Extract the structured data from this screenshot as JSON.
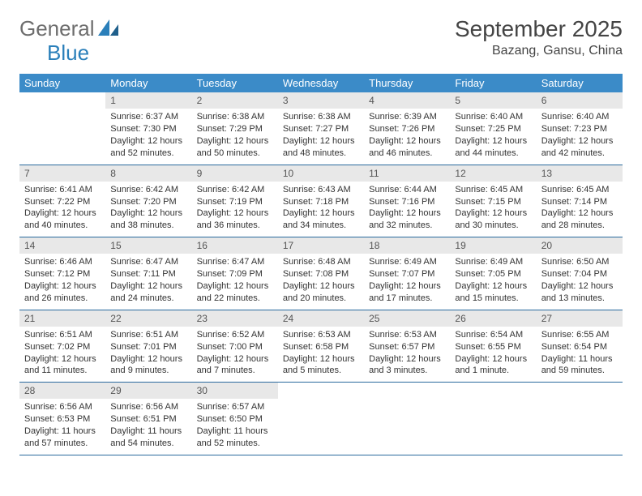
{
  "brand": {
    "part1": "General",
    "part2": "Blue"
  },
  "title": "September 2025",
  "location": "Bazang, Gansu, China",
  "colors": {
    "header_bg": "#3b8bc8",
    "header_text": "#ffffff",
    "daynum_bg": "#e8e8e8",
    "daynum_text": "#555555",
    "cell_border": "#2a6a9e",
    "brand_gray": "#6d6d6d",
    "brand_blue": "#2a7fba",
    "body_text": "#333333",
    "page_bg": "#ffffff"
  },
  "typography": {
    "title_fontsize": 28,
    "location_fontsize": 16,
    "dayheader_fontsize": 13,
    "cell_fontsize": 11,
    "logo_fontsize": 26
  },
  "day_headers": [
    "Sunday",
    "Monday",
    "Tuesday",
    "Wednesday",
    "Thursday",
    "Friday",
    "Saturday"
  ],
  "weeks": [
    [
      {
        "n": "",
        "sunrise": "",
        "sunset": "",
        "daylight": ""
      },
      {
        "n": "1",
        "sunrise": "Sunrise: 6:37 AM",
        "sunset": "Sunset: 7:30 PM",
        "daylight": "Daylight: 12 hours and 52 minutes."
      },
      {
        "n": "2",
        "sunrise": "Sunrise: 6:38 AM",
        "sunset": "Sunset: 7:29 PM",
        "daylight": "Daylight: 12 hours and 50 minutes."
      },
      {
        "n": "3",
        "sunrise": "Sunrise: 6:38 AM",
        "sunset": "Sunset: 7:27 PM",
        "daylight": "Daylight: 12 hours and 48 minutes."
      },
      {
        "n": "4",
        "sunrise": "Sunrise: 6:39 AM",
        "sunset": "Sunset: 7:26 PM",
        "daylight": "Daylight: 12 hours and 46 minutes."
      },
      {
        "n": "5",
        "sunrise": "Sunrise: 6:40 AM",
        "sunset": "Sunset: 7:25 PM",
        "daylight": "Daylight: 12 hours and 44 minutes."
      },
      {
        "n": "6",
        "sunrise": "Sunrise: 6:40 AM",
        "sunset": "Sunset: 7:23 PM",
        "daylight": "Daylight: 12 hours and 42 minutes."
      }
    ],
    [
      {
        "n": "7",
        "sunrise": "Sunrise: 6:41 AM",
        "sunset": "Sunset: 7:22 PM",
        "daylight": "Daylight: 12 hours and 40 minutes."
      },
      {
        "n": "8",
        "sunrise": "Sunrise: 6:42 AM",
        "sunset": "Sunset: 7:20 PM",
        "daylight": "Daylight: 12 hours and 38 minutes."
      },
      {
        "n": "9",
        "sunrise": "Sunrise: 6:42 AM",
        "sunset": "Sunset: 7:19 PM",
        "daylight": "Daylight: 12 hours and 36 minutes."
      },
      {
        "n": "10",
        "sunrise": "Sunrise: 6:43 AM",
        "sunset": "Sunset: 7:18 PM",
        "daylight": "Daylight: 12 hours and 34 minutes."
      },
      {
        "n": "11",
        "sunrise": "Sunrise: 6:44 AM",
        "sunset": "Sunset: 7:16 PM",
        "daylight": "Daylight: 12 hours and 32 minutes."
      },
      {
        "n": "12",
        "sunrise": "Sunrise: 6:45 AM",
        "sunset": "Sunset: 7:15 PM",
        "daylight": "Daylight: 12 hours and 30 minutes."
      },
      {
        "n": "13",
        "sunrise": "Sunrise: 6:45 AM",
        "sunset": "Sunset: 7:14 PM",
        "daylight": "Daylight: 12 hours and 28 minutes."
      }
    ],
    [
      {
        "n": "14",
        "sunrise": "Sunrise: 6:46 AM",
        "sunset": "Sunset: 7:12 PM",
        "daylight": "Daylight: 12 hours and 26 minutes."
      },
      {
        "n": "15",
        "sunrise": "Sunrise: 6:47 AM",
        "sunset": "Sunset: 7:11 PM",
        "daylight": "Daylight: 12 hours and 24 minutes."
      },
      {
        "n": "16",
        "sunrise": "Sunrise: 6:47 AM",
        "sunset": "Sunset: 7:09 PM",
        "daylight": "Daylight: 12 hours and 22 minutes."
      },
      {
        "n": "17",
        "sunrise": "Sunrise: 6:48 AM",
        "sunset": "Sunset: 7:08 PM",
        "daylight": "Daylight: 12 hours and 20 minutes."
      },
      {
        "n": "18",
        "sunrise": "Sunrise: 6:49 AM",
        "sunset": "Sunset: 7:07 PM",
        "daylight": "Daylight: 12 hours and 17 minutes."
      },
      {
        "n": "19",
        "sunrise": "Sunrise: 6:49 AM",
        "sunset": "Sunset: 7:05 PM",
        "daylight": "Daylight: 12 hours and 15 minutes."
      },
      {
        "n": "20",
        "sunrise": "Sunrise: 6:50 AM",
        "sunset": "Sunset: 7:04 PM",
        "daylight": "Daylight: 12 hours and 13 minutes."
      }
    ],
    [
      {
        "n": "21",
        "sunrise": "Sunrise: 6:51 AM",
        "sunset": "Sunset: 7:02 PM",
        "daylight": "Daylight: 12 hours and 11 minutes."
      },
      {
        "n": "22",
        "sunrise": "Sunrise: 6:51 AM",
        "sunset": "Sunset: 7:01 PM",
        "daylight": "Daylight: 12 hours and 9 minutes."
      },
      {
        "n": "23",
        "sunrise": "Sunrise: 6:52 AM",
        "sunset": "Sunset: 7:00 PM",
        "daylight": "Daylight: 12 hours and 7 minutes."
      },
      {
        "n": "24",
        "sunrise": "Sunrise: 6:53 AM",
        "sunset": "Sunset: 6:58 PM",
        "daylight": "Daylight: 12 hours and 5 minutes."
      },
      {
        "n": "25",
        "sunrise": "Sunrise: 6:53 AM",
        "sunset": "Sunset: 6:57 PM",
        "daylight": "Daylight: 12 hours and 3 minutes."
      },
      {
        "n": "26",
        "sunrise": "Sunrise: 6:54 AM",
        "sunset": "Sunset: 6:55 PM",
        "daylight": "Daylight: 12 hours and 1 minute."
      },
      {
        "n": "27",
        "sunrise": "Sunrise: 6:55 AM",
        "sunset": "Sunset: 6:54 PM",
        "daylight": "Daylight: 11 hours and 59 minutes."
      }
    ],
    [
      {
        "n": "28",
        "sunrise": "Sunrise: 6:56 AM",
        "sunset": "Sunset: 6:53 PM",
        "daylight": "Daylight: 11 hours and 57 minutes."
      },
      {
        "n": "29",
        "sunrise": "Sunrise: 6:56 AM",
        "sunset": "Sunset: 6:51 PM",
        "daylight": "Daylight: 11 hours and 54 minutes."
      },
      {
        "n": "30",
        "sunrise": "Sunrise: 6:57 AM",
        "sunset": "Sunset: 6:50 PM",
        "daylight": "Daylight: 11 hours and 52 minutes."
      },
      {
        "n": "",
        "sunrise": "",
        "sunset": "",
        "daylight": ""
      },
      {
        "n": "",
        "sunrise": "",
        "sunset": "",
        "daylight": ""
      },
      {
        "n": "",
        "sunrise": "",
        "sunset": "",
        "daylight": ""
      },
      {
        "n": "",
        "sunrise": "",
        "sunset": "",
        "daylight": ""
      }
    ]
  ]
}
